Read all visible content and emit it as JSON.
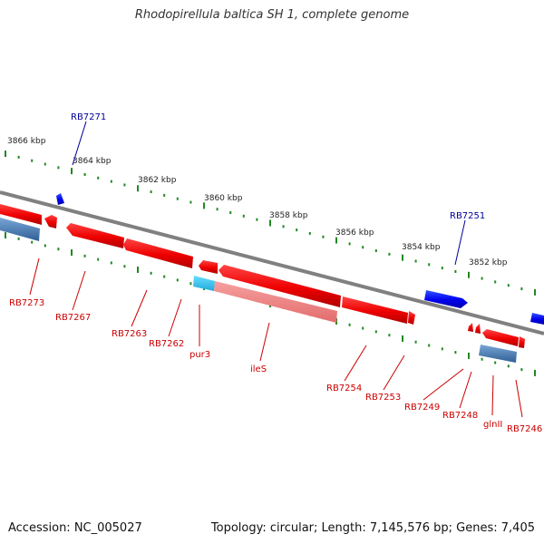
{
  "title": "Rhodopirellula baltica SH 1, complete genome",
  "footer": {
    "accession": "Accession: NC_005027",
    "topology": "Topology: circular; Length: 7,145,576 bp; Genes: 7,405"
  },
  "colors": {
    "backbone": "#808080",
    "gene_red": "#ee0000",
    "gene_blue": "#0000ee",
    "rna_lightblue": "#33ccff",
    "tick_green": "#228822",
    "label_red": "#cc0000",
    "label_blue": "#000099"
  },
  "kbp_labels": [
    "3866 kbp",
    "3864 kbp",
    "3862 kbp",
    "3860 kbp",
    "3858 kbp",
    "3856 kbp",
    "3854 kbp",
    "3852 kbp"
  ],
  "top_gene_labels": [
    "RB7271",
    "RB7251"
  ],
  "bottom_gene_labels": [
    "RB7273",
    "RB7267",
    "RB7263",
    "RB7262",
    "pur3",
    "ileS",
    "RB7254",
    "RB7253",
    "RB7249",
    "RB7248",
    "glnII",
    "RB7246"
  ]
}
